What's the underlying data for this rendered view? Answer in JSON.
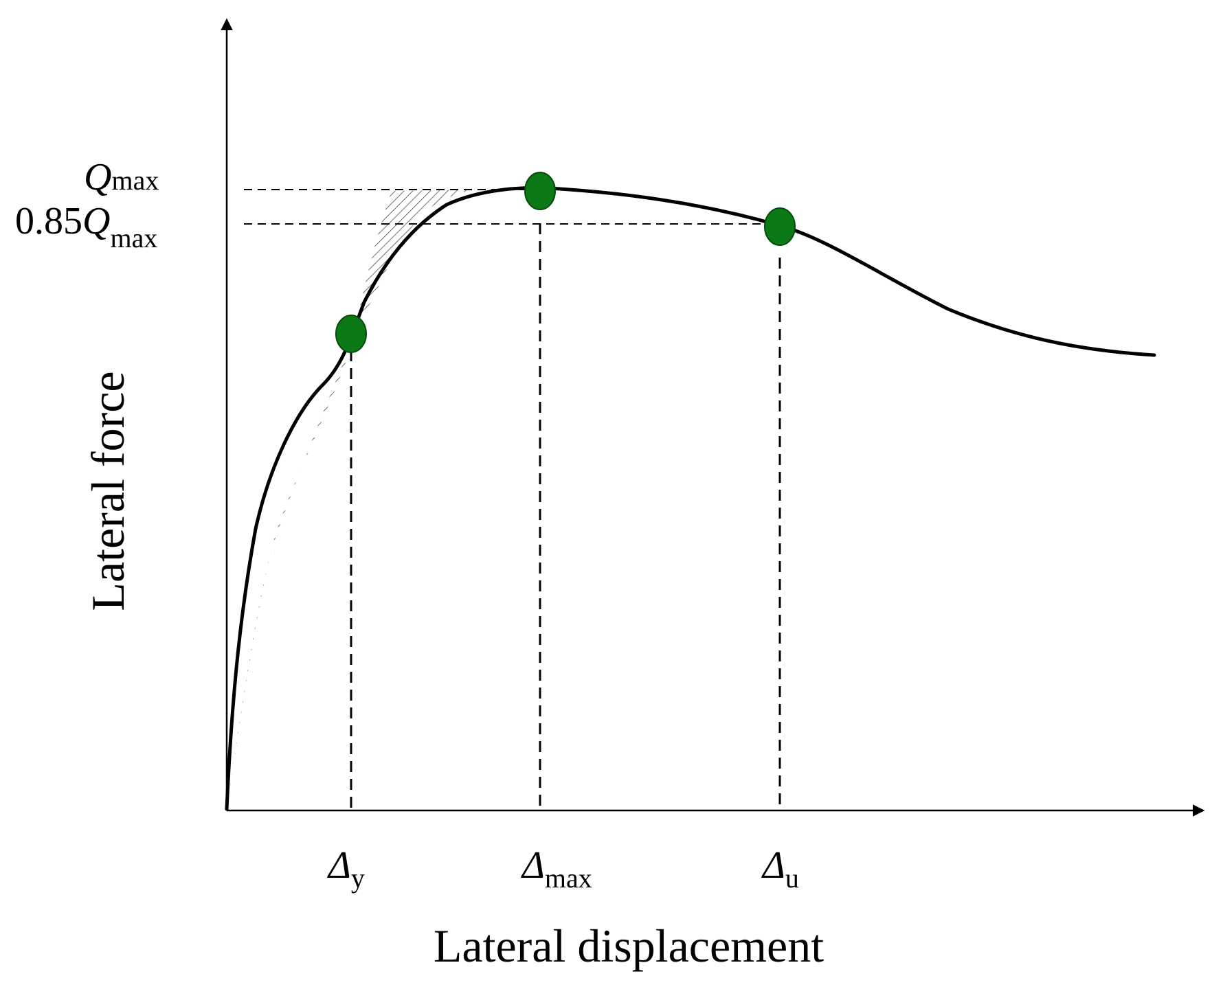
{
  "axes": {
    "x_label": "Lateral displacement",
    "y_label": "Lateral force"
  },
  "y_markers": {
    "qmax": {
      "main": "Q",
      "sub": "max"
    },
    "q085": {
      "prefix": "0.85",
      "main": "Q",
      "sub": "max"
    }
  },
  "x_markers": {
    "dy": {
      "main": "Δ",
      "sub": "y"
    },
    "dmax": {
      "main": "Δ",
      "sub": "max"
    },
    "du": {
      "main": "Δ",
      "sub": "u"
    }
  },
  "colors": {
    "curve": "#000000",
    "point": "#0b7a16",
    "hatch": "#333333"
  }
}
